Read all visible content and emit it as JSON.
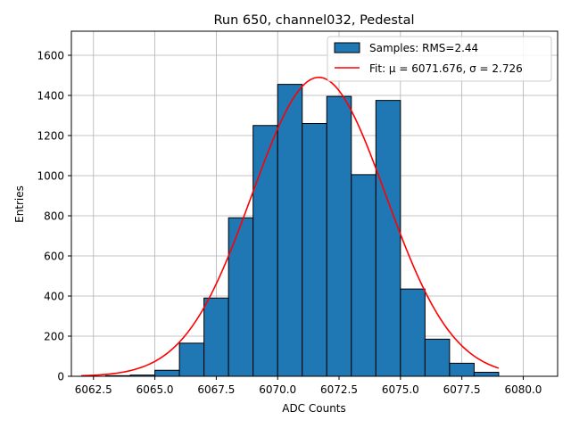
{
  "chart_data": {
    "type": "bar",
    "title": "Run 650, channel032, Pedestal",
    "xlabel": "ADC Counts",
    "ylabel": "Entries",
    "xlim": [
      6061.6,
      6081.4
    ],
    "ylim": [
      0,
      1720
    ],
    "grid": true,
    "legend_position": "top-right",
    "x_ticks": [
      6062.5,
      6065.0,
      6067.5,
      6070.0,
      6072.5,
      6075.0,
      6077.5,
      6080.0
    ],
    "x_tick_labels": [
      "6062.5",
      "6065.0",
      "6067.5",
      "6070.0",
      "6072.5",
      "6075.0",
      "6077.5",
      "6080.0"
    ],
    "y_ticks": [
      0,
      200,
      400,
      600,
      800,
      1000,
      1200,
      1400,
      1600
    ],
    "y_tick_labels": [
      "0",
      "200",
      "400",
      "600",
      "800",
      "1000",
      "1200",
      "1400",
      "1600"
    ],
    "histogram": {
      "name": "Samples: RMS=2.44",
      "color": "#1f77b4",
      "edge_color": "#000000",
      "bins": [
        {
          "x0": 6062,
          "x1": 6063,
          "value": 0
        },
        {
          "x0": 6063,
          "x1": 6064,
          "value": 3
        },
        {
          "x0": 6064,
          "x1": 6065,
          "value": 6
        },
        {
          "x0": 6065,
          "x1": 6066,
          "value": 30
        },
        {
          "x0": 6066,
          "x1": 6067,
          "value": 165
        },
        {
          "x0": 6067,
          "x1": 6068,
          "value": 390
        },
        {
          "x0": 6068,
          "x1": 6069,
          "value": 790
        },
        {
          "x0": 6069,
          "x1": 6070,
          "value": 1250
        },
        {
          "x0": 6070,
          "x1": 6071,
          "value": 1455
        },
        {
          "x0": 6071,
          "x1": 6072,
          "value": 1260
        },
        {
          "x0": 6072,
          "x1": 6073,
          "value": 1395
        },
        {
          "x0": 6073,
          "x1": 6074,
          "value": 1005
        },
        {
          "x0": 6074,
          "x1": 6075,
          "value": 1375
        },
        {
          "x0": 6075,
          "x1": 6076,
          "value": 435
        },
        {
          "x0": 6076,
          "x1": 6077,
          "value": 185
        },
        {
          "x0": 6077,
          "x1": 6078,
          "value": 65
        },
        {
          "x0": 6078,
          "x1": 6079,
          "value": 20
        }
      ]
    },
    "fit": {
      "name": "Fit: μ = 6071.676, σ = 2.726",
      "color": "#ff0000",
      "mu": 6071.676,
      "sigma": 2.726,
      "amplitude": 1490,
      "x_range": [
        6062,
        6079
      ]
    }
  }
}
